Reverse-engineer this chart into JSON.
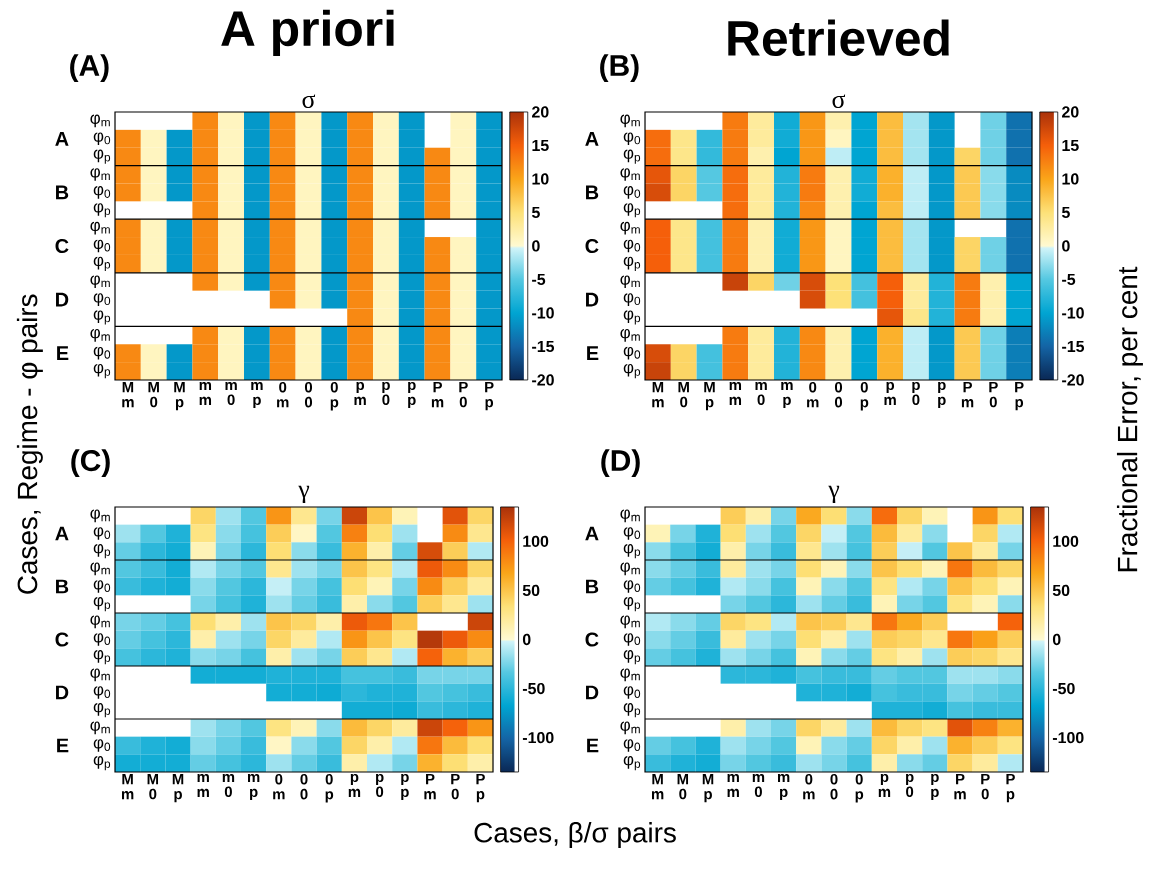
{
  "chart_data": [
    {
      "type": "heatmap",
      "title": "σ",
      "ylabel": "Cases, Regime - φ pairs",
      "annotations": [
        "A priori",
        "(A)",
        "A",
        "B",
        "C",
        "D",
        "E"
      ],
      "categories": [
        "M m",
        "M 0",
        "M p",
        "m m",
        "m 0",
        "m p",
        "0 m",
        "0 0",
        "0 p",
        "p m",
        "p 0",
        "p p",
        "P m",
        "P 0",
        "P p"
      ],
      "y_categories": [
        "φ$_{m}$",
        "φ$_{0}$",
        "φ$_{p}$",
        "φ$_{m}$",
        "φ$_{0}$",
        "φ$_{p}$",
        "φ$_{m}$",
        "φ$_{0}$",
        "φ$_{p}$",
        "φ$_{m}$",
        "φ$_{0}$",
        "φ$_{p}$",
        "φ$_{m}$",
        "φ$_{0}$",
        "φ$_{p}$"
      ],
      "clim": [
        -20,
        20
      ],
      "cticks": [
        -20,
        -15,
        -10,
        -5,
        0,
        5,
        10,
        15,
        20
      ],
      "cells": [
        [
          null,
          null,
          null,
          12,
          1,
          -11,
          12,
          1,
          -11,
          12,
          1,
          -11,
          null,
          1,
          -11
        ],
        [
          12,
          1,
          -11,
          12,
          1,
          -11,
          12,
          1,
          -11,
          12,
          1,
          -11,
          null,
          1,
          -11
        ],
        [
          12,
          1,
          -11,
          12,
          1,
          -11,
          12,
          1,
          -11,
          12,
          1,
          -11,
          12,
          1,
          -11
        ],
        [
          12,
          1,
          -11,
          12,
          1,
          -11,
          12,
          1,
          -11,
          12,
          1,
          -11,
          12,
          1,
          -11
        ],
        [
          12,
          1,
          -11,
          12,
          1,
          -11,
          12,
          1,
          -11,
          12,
          1,
          -11,
          12,
          1,
          -11
        ],
        [
          null,
          null,
          null,
          12,
          1,
          -11,
          12,
          1,
          -11,
          12,
          1,
          -11,
          12,
          1,
          -11
        ],
        [
          12,
          1,
          -11,
          12,
          1,
          -11,
          12,
          1,
          -11,
          12,
          1,
          -11,
          null,
          null,
          -11
        ],
        [
          12,
          1,
          -11,
          12,
          1,
          -11,
          12,
          1,
          -11,
          12,
          1,
          -11,
          12,
          1,
          -11
        ],
        [
          12,
          1,
          -11,
          12,
          1,
          -11,
          12,
          1,
          -11,
          12,
          1,
          -11,
          12,
          1,
          -11
        ],
        [
          null,
          null,
          null,
          12,
          1,
          -11,
          12,
          1,
          -11,
          12,
          1,
          -11,
          12,
          1,
          -11
        ],
        [
          null,
          null,
          null,
          null,
          null,
          null,
          12,
          1,
          -11,
          12,
          1,
          -11,
          12,
          1,
          -11
        ],
        [
          null,
          null,
          null,
          null,
          null,
          null,
          null,
          null,
          null,
          12,
          1,
          -11,
          12,
          1,
          -11
        ],
        [
          null,
          null,
          null,
          12,
          1,
          -11,
          12,
          1,
          -11,
          12,
          1,
          -11,
          12,
          1,
          -11
        ],
        [
          12,
          1,
          -11,
          12,
          1,
          -11,
          12,
          1,
          -11,
          12,
          1,
          -11,
          12,
          1,
          -11
        ],
        [
          12,
          1,
          -11,
          12,
          1,
          -11,
          12,
          1,
          -11,
          12,
          1,
          -11,
          12,
          1,
          -11
        ]
      ]
    },
    {
      "type": "heatmap",
      "title": "σ",
      "clabel": "Fractional Error, per cent",
      "annotations": [
        "Retrieved",
        "(B)",
        "A",
        "B",
        "C",
        "D",
        "E"
      ],
      "categories": [
        "M m",
        "M 0",
        "M p",
        "m m",
        "m 0",
        "m p",
        "0 m",
        "0 0",
        "0 p",
        "p m",
        "p 0",
        "p p",
        "P m",
        "P 0",
        "P p"
      ],
      "y_categories": [
        "φ$_{m}$",
        "φ$_{0}$",
        "φ$_{p}$",
        "φ$_{m}$",
        "φ$_{0}$",
        "φ$_{p}$",
        "φ$_{m}$",
        "φ$_{0}$",
        "φ$_{p}$",
        "φ$_{m}$",
        "φ$_{0}$",
        "φ$_{p}$",
        "φ$_{m}$",
        "φ$_{0}$",
        "φ$_{p}$"
      ],
      "clim": [
        -20,
        20
      ],
      "cticks": [
        -20,
        -15,
        -10,
        -5,
        0,
        5,
        10,
        15,
        20
      ],
      "cells": [
        [
          null,
          null,
          null,
          13,
          3,
          -9,
          11,
          2,
          -10,
          8,
          -2,
          -11,
          null,
          -4,
          -14
        ],
        [
          14,
          4,
          -7,
          13,
          3,
          -9,
          11,
          1,
          -10,
          8,
          -2,
          -11,
          null,
          -4,
          -14
        ],
        [
          14,
          4,
          -7,
          13,
          2,
          -10,
          11,
          -1,
          -10,
          8,
          -2,
          -11,
          6,
          -4,
          -14
        ],
        [
          16,
          6,
          -5,
          14,
          3,
          -8,
          13,
          2,
          -9,
          9,
          -1,
          -11,
          7,
          -3,
          -12
        ],
        [
          17,
          6,
          -5,
          14,
          3,
          -8,
          13,
          2,
          -9,
          9,
          -1,
          -11,
          7,
          -3,
          -12
        ],
        [
          null,
          null,
          null,
          14,
          3,
          -8,
          12,
          2,
          -10,
          8,
          -1,
          -11,
          7,
          -3,
          -12
        ],
        [
          15,
          4,
          -6,
          13,
          2,
          -9,
          11,
          1,
          -10,
          8,
          -2,
          -11,
          null,
          null,
          -14
        ],
        [
          15,
          4,
          -6,
          13,
          2,
          -9,
          11,
          1,
          -10,
          8,
          -2,
          -11,
          6,
          -4,
          -14
        ],
        [
          15,
          4,
          -6,
          13,
          2,
          -9,
          11,
          1,
          -10,
          8,
          -2,
          -11,
          6,
          -4,
          -14
        ],
        [
          null,
          null,
          null,
          18,
          6,
          -4,
          17,
          5,
          -6,
          15,
          3,
          -8,
          13,
          2,
          -10
        ],
        [
          null,
          null,
          null,
          null,
          null,
          null,
          17,
          5,
          -6,
          15,
          3,
          -8,
          13,
          2,
          -10
        ],
        [
          null,
          null,
          null,
          null,
          null,
          null,
          null,
          null,
          null,
          16,
          4,
          -8,
          13,
          2,
          -10
        ],
        [
          null,
          null,
          null,
          13,
          3,
          -8,
          12,
          2,
          -10,
          9,
          -1,
          -11,
          7,
          -4,
          -13
        ],
        [
          17,
          6,
          -6,
          13,
          3,
          -8,
          12,
          2,
          -10,
          9,
          -1,
          -11,
          7,
          -4,
          -13
        ],
        [
          18,
          6,
          -6,
          13,
          3,
          -8,
          12,
          2,
          -10,
          9,
          -1,
          -11,
          7,
          -4,
          -13
        ]
      ]
    },
    {
      "type": "heatmap",
      "title": "γ",
      "xlabel": "Cases, β/σ pairs",
      "annotations": [
        "(C)",
        "A",
        "B",
        "C",
        "D",
        "E"
      ],
      "categories": [
        "M m",
        "M 0",
        "M p",
        "m m",
        "m 0",
        "m p",
        "0 m",
        "0 0",
        "0 p",
        "p m",
        "p 0",
        "p p",
        "P m",
        "P 0",
        "P p"
      ],
      "y_categories": [
        "φ$_{m}$",
        "φ$_{0}$",
        "φ$_{p}$",
        "φ$_{m}$",
        "φ$_{0}$",
        "φ$_{p}$",
        "φ$_{m}$",
        "φ$_{0}$",
        "φ$_{p}$",
        "φ$_{m}$",
        "φ$_{0}$",
        "φ$_{p}$",
        "φ$_{m}$",
        "φ$_{0}$",
        "φ$_{p}$"
      ],
      "clim": [
        -135,
        135
      ],
      "cticks": [
        -100,
        -50,
        0,
        50,
        100
      ],
      "cells": [
        [
          null,
          null,
          null,
          40,
          -15,
          -35,
          75,
          25,
          -25,
          120,
          50,
          10,
          null,
          110,
          40
        ],
        [
          -15,
          -35,
          -55,
          30,
          -20,
          -40,
          45,
          5,
          -35,
          85,
          35,
          -15,
          null,
          80,
          25
        ],
        [
          -30,
          -50,
          -60,
          10,
          -25,
          -50,
          35,
          -20,
          -45,
          60,
          15,
          -30,
          115,
          45,
          -10
        ],
        [
          -35,
          -45,
          -60,
          -10,
          -25,
          -35,
          25,
          -15,
          -25,
          50,
          30,
          -10,
          105,
          80,
          40
        ],
        [
          -45,
          -55,
          -60,
          -20,
          -35,
          -50,
          -5,
          -25,
          -40,
          35,
          10,
          -25,
          80,
          45,
          20
        ],
        [
          null,
          null,
          null,
          -25,
          -40,
          -55,
          -15,
          -30,
          -45,
          15,
          -20,
          -35,
          45,
          25,
          -15
        ],
        [
          -25,
          -30,
          -40,
          35,
          15,
          -15,
          50,
          40,
          15,
          105,
          90,
          50,
          null,
          null,
          120
        ],
        [
          -30,
          -40,
          -50,
          15,
          -15,
          -25,
          40,
          20,
          -10,
          75,
          50,
          30,
          130,
          105,
          80
        ],
        [
          -40,
          -50,
          -55,
          -20,
          -25,
          -40,
          15,
          -15,
          -25,
          45,
          25,
          -10,
          100,
          60,
          45
        ],
        [
          null,
          null,
          null,
          -60,
          -60,
          -60,
          -55,
          -55,
          -55,
          -40,
          -40,
          -45,
          -25,
          -25,
          -25
        ],
        [
          null,
          null,
          null,
          null,
          null,
          null,
          -60,
          -60,
          -62,
          -50,
          -55,
          -55,
          -35,
          -40,
          -45
        ],
        [
          null,
          null,
          null,
          null,
          null,
          null,
          null,
          null,
          null,
          -60,
          -60,
          -62,
          -45,
          -50,
          -55
        ],
        [
          null,
          null,
          null,
          -15,
          -25,
          -35,
          30,
          10,
          -20,
          55,
          40,
          20,
          120,
          100,
          75
        ],
        [
          -45,
          -55,
          -60,
          -20,
          -30,
          -45,
          5,
          -20,
          -35,
          40,
          15,
          -10,
          90,
          55,
          35
        ],
        [
          -60,
          -60,
          -60,
          -30,
          -40,
          -50,
          -15,
          -30,
          -45,
          15,
          -10,
          -25,
          60,
          35,
          15
        ]
      ]
    },
    {
      "type": "heatmap",
      "title": "γ",
      "annotations": [
        "(D)",
        "A",
        "B",
        "C",
        "D",
        "E"
      ],
      "categories": [
        "M m",
        "M 0",
        "M p",
        "m m",
        "m 0",
        "m p",
        "0 m",
        "0 0",
        "0 p",
        "p m",
        "p 0",
        "p p",
        "P m",
        "P 0",
        "P p"
      ],
      "y_categories": [
        "φ$_{m}$",
        "φ$_{0}$",
        "φ$_{p}$",
        "φ$_{m}$",
        "φ$_{0}$",
        "φ$_{p}$",
        "φ$_{m}$",
        "φ$_{0}$",
        "φ$_{p}$",
        "φ$_{m}$",
        "φ$_{0}$",
        "φ$_{p}$",
        "φ$_{m}$",
        "φ$_{0}$",
        "φ$_{p}$"
      ],
      "clim": [
        -135,
        135
      ],
      "cticks": [
        -100,
        -50,
        0,
        50,
        100
      ],
      "cells": [
        [
          null,
          null,
          null,
          45,
          15,
          -25,
          65,
          35,
          -20,
          95,
          40,
          10,
          null,
          75,
          35
        ],
        [
          10,
          -25,
          -55,
          35,
          -15,
          -35,
          40,
          -5,
          -35,
          55,
          20,
          -20,
          null,
          40,
          -10
        ],
        [
          -20,
          -40,
          -60,
          15,
          -25,
          -45,
          25,
          -15,
          -40,
          45,
          -5,
          -35,
          50,
          20,
          -25
        ],
        [
          -20,
          -30,
          -45,
          20,
          -15,
          -25,
          35,
          10,
          -20,
          50,
          35,
          10,
          90,
          55,
          40
        ],
        [
          -30,
          -40,
          -55,
          -10,
          -20,
          -40,
          10,
          -20,
          -35,
          30,
          -10,
          -25,
          50,
          35,
          10
        ],
        [
          null,
          null,
          null,
          -25,
          -35,
          -50,
          -15,
          -30,
          -45,
          10,
          -25,
          -35,
          30,
          10,
          -20
        ],
        [
          -10,
          -20,
          -30,
          40,
          30,
          -10,
          50,
          45,
          25,
          90,
          65,
          45,
          null,
          null,
          100
        ],
        [
          -20,
          -30,
          -45,
          20,
          -15,
          -25,
          35,
          15,
          -15,
          45,
          40,
          25,
          90,
          70,
          45
        ],
        [
          -30,
          -40,
          -55,
          -15,
          -25,
          -40,
          10,
          -20,
          -30,
          30,
          15,
          -15,
          45,
          40,
          25
        ],
        [
          null,
          null,
          null,
          -50,
          -50,
          -55,
          -40,
          -45,
          -45,
          -30,
          -35,
          -35,
          -15,
          -15,
          -20
        ],
        [
          null,
          null,
          null,
          null,
          null,
          null,
          -55,
          -55,
          -60,
          -40,
          -45,
          -45,
          -25,
          -30,
          -35
        ],
        [
          null,
          null,
          null,
          null,
          null,
          null,
          null,
          null,
          null,
          -55,
          -55,
          -60,
          -40,
          -45,
          -45
        ],
        [
          null,
          null,
          null,
          15,
          -15,
          -25,
          40,
          20,
          -15,
          55,
          40,
          30,
          110,
          85,
          60
        ],
        [
          -30,
          -40,
          -55,
          -15,
          -25,
          -35,
          10,
          -20,
          -30,
          40,
          15,
          -15,
          60,
          45,
          30
        ],
        [
          -45,
          -55,
          -60,
          -25,
          -35,
          -45,
          -15,
          -25,
          -40,
          15,
          -20,
          -30,
          40,
          20,
          -10
        ]
      ]
    }
  ]
}
